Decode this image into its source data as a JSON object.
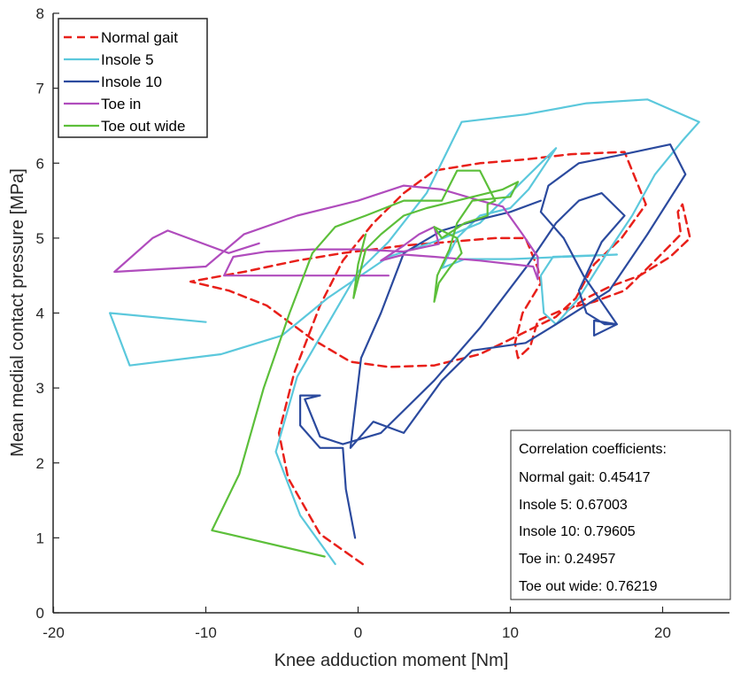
{
  "chart_data": {
    "type": "line",
    "title": "",
    "xlabel": "Knee adduction moment [Nm]",
    "ylabel": "Mean medial contact pressure [MPa]",
    "xlim": [
      -20,
      25
    ],
    "ylim": [
      0,
      8
    ],
    "xticks": [
      -20,
      -10,
      0,
      10,
      20
    ],
    "yticks": [
      0,
      1,
      2,
      3,
      4,
      5,
      6,
      7,
      8
    ],
    "grid": false,
    "legend_position": "top-left",
    "series": [
      {
        "name": "Normal gait",
        "color": "#e8201a",
        "dash": "dashed",
        "points": [
          [
            0.3,
            0.65
          ],
          [
            -2.5,
            1.05
          ],
          [
            -4.6,
            1.8
          ],
          [
            -5.2,
            2.4
          ],
          [
            -4.2,
            3.2
          ],
          [
            -2.5,
            4.1
          ],
          [
            -1.0,
            4.7
          ],
          [
            1.0,
            5.2
          ],
          [
            3.0,
            5.6
          ],
          [
            5.0,
            5.9
          ],
          [
            8.0,
            6.0
          ],
          [
            11.0,
            6.05
          ],
          [
            14.0,
            6.12
          ],
          [
            17.5,
            6.15
          ],
          [
            18.0,
            5.9
          ],
          [
            18.9,
            5.45
          ],
          [
            17.3,
            5.0
          ],
          [
            15.5,
            4.65
          ],
          [
            14.3,
            4.2
          ],
          [
            13.0,
            3.95
          ],
          [
            10.0,
            3.65
          ],
          [
            8.0,
            3.45
          ],
          [
            5.0,
            3.3
          ],
          [
            2.0,
            3.28
          ],
          [
            -0.5,
            3.35
          ],
          [
            -3.0,
            3.65
          ],
          [
            -6.0,
            4.1
          ],
          [
            -8.5,
            4.3
          ],
          [
            -11.0,
            4.42
          ],
          [
            -7.5,
            4.55
          ],
          [
            -4.0,
            4.7
          ],
          [
            -1.0,
            4.8
          ],
          [
            1.0,
            4.85
          ],
          [
            3.0,
            4.9
          ],
          [
            6.0,
            4.95
          ],
          [
            9.0,
            5.0
          ],
          [
            11.0,
            5.0
          ],
          [
            11.8,
            4.6
          ],
          [
            12.0,
            4.4
          ],
          [
            10.8,
            4.0
          ],
          [
            10.3,
            3.6
          ],
          [
            10.5,
            3.4
          ],
          [
            11.3,
            3.55
          ],
          [
            11.8,
            3.9
          ],
          [
            13.5,
            4.05
          ],
          [
            15.5,
            4.15
          ],
          [
            17.5,
            4.3
          ],
          [
            19.5,
            4.7
          ],
          [
            21.2,
            5.05
          ],
          [
            21.0,
            5.35
          ],
          [
            21.3,
            5.45
          ],
          [
            21.8,
            5.0
          ],
          [
            20.5,
            4.75
          ],
          [
            18.5,
            4.5
          ],
          [
            16.5,
            4.35
          ],
          [
            15.0,
            4.2
          ],
          [
            13.5,
            4.0
          ]
        ]
      },
      {
        "name": "Insole 5",
        "color": "#5bc8dc",
        "dash": "solid",
        "points": [
          [
            -1.5,
            0.65
          ],
          [
            -3.8,
            1.3
          ],
          [
            -5.4,
            2.15
          ],
          [
            -4.0,
            3.15
          ],
          [
            -2.0,
            3.85
          ],
          [
            0.0,
            4.55
          ],
          [
            2.0,
            4.95
          ],
          [
            4.5,
            5.6
          ],
          [
            6.8,
            6.55
          ],
          [
            11.0,
            6.65
          ],
          [
            15.0,
            6.8
          ],
          [
            19.0,
            6.85
          ],
          [
            22.4,
            6.55
          ],
          [
            21.3,
            6.3
          ],
          [
            19.5,
            5.85
          ],
          [
            18.0,
            5.3
          ],
          [
            16.2,
            4.75
          ],
          [
            14.5,
            4.2
          ],
          [
            13.0,
            3.85
          ],
          [
            12.2,
            4.0
          ],
          [
            12.0,
            4.5
          ],
          [
            12.8,
            4.75
          ],
          [
            17.0,
            4.78
          ],
          [
            10.0,
            4.72
          ],
          [
            7.0,
            4.72
          ],
          [
            5.5,
            4.6
          ],
          [
            6.5,
            5.0
          ],
          [
            8.0,
            5.3
          ],
          [
            10.0,
            5.4
          ],
          [
            11.2,
            5.65
          ],
          [
            13.0,
            6.2
          ],
          [
            8.0,
            5.2
          ],
          [
            5.0,
            4.95
          ],
          [
            2.0,
            4.75
          ],
          [
            -2.0,
            4.2
          ],
          [
            -5.0,
            3.7
          ],
          [
            -9.0,
            3.45
          ],
          [
            -15.0,
            3.3
          ],
          [
            -16.3,
            4.0
          ],
          [
            -10.0,
            3.88
          ]
        ]
      },
      {
        "name": "Insole 10",
        "color": "#2b4a9e",
        "dash": "solid",
        "points": [
          [
            -0.2,
            1.0
          ],
          [
            -0.8,
            1.65
          ],
          [
            -1.0,
            2.2
          ],
          [
            -2.5,
            2.2
          ],
          [
            -3.8,
            2.5
          ],
          [
            -3.8,
            2.9
          ],
          [
            -2.5,
            2.9
          ],
          [
            -3.5,
            2.85
          ],
          [
            -2.5,
            2.35
          ],
          [
            -1.0,
            2.25
          ],
          [
            1.5,
            2.4
          ],
          [
            5.0,
            3.1
          ],
          [
            8.0,
            3.8
          ],
          [
            11.0,
            4.6
          ],
          [
            13.0,
            5.2
          ],
          [
            14.5,
            5.5
          ],
          [
            16.0,
            5.6
          ],
          [
            17.5,
            5.3
          ],
          [
            16.0,
            4.95
          ],
          [
            14.5,
            4.3
          ],
          [
            15.0,
            4.0
          ],
          [
            16.2,
            3.85
          ],
          [
            17.0,
            3.85
          ],
          [
            15.5,
            3.7
          ],
          [
            15.5,
            3.9
          ],
          [
            17.0,
            3.85
          ],
          [
            14.8,
            4.5
          ],
          [
            13.5,
            5.0
          ],
          [
            12.0,
            5.35
          ],
          [
            12.5,
            5.7
          ],
          [
            14.5,
            6.0
          ],
          [
            17.0,
            6.1
          ],
          [
            20.5,
            6.25
          ],
          [
            21.5,
            5.85
          ],
          [
            19.0,
            5.05
          ],
          [
            16.5,
            4.3
          ],
          [
            13.0,
            3.85
          ],
          [
            11.0,
            3.6
          ],
          [
            7.5,
            3.5
          ],
          [
            5.5,
            3.1
          ],
          [
            3.0,
            2.4
          ],
          [
            1.0,
            2.55
          ],
          [
            -0.5,
            2.2
          ],
          [
            0.2,
            3.4
          ],
          [
            1.5,
            4.0
          ],
          [
            3.0,
            4.8
          ],
          [
            5.5,
            5.1
          ],
          [
            8.0,
            5.25
          ],
          [
            10.0,
            5.35
          ],
          [
            12.0,
            5.5
          ]
        ]
      },
      {
        "name": "Toe in",
        "color": "#b04cbd",
        "dash": "solid",
        "points": [
          [
            -6.5,
            4.93
          ],
          [
            -8.5,
            4.8
          ],
          [
            -12.5,
            5.1
          ],
          [
            -13.5,
            5.0
          ],
          [
            -16.0,
            4.55
          ],
          [
            -10.0,
            4.62
          ],
          [
            -7.5,
            5.05
          ],
          [
            -4.0,
            5.3
          ],
          [
            0.0,
            5.5
          ],
          [
            3.0,
            5.7
          ],
          [
            5.5,
            5.65
          ],
          [
            8.0,
            5.5
          ],
          [
            9.5,
            5.42
          ],
          [
            10.8,
            5.05
          ],
          [
            11.8,
            4.75
          ],
          [
            11.8,
            4.45
          ],
          [
            11.5,
            4.62
          ],
          [
            8.0,
            4.7
          ],
          [
            5.0,
            4.75
          ],
          [
            3.0,
            4.78
          ],
          [
            1.5,
            4.7
          ],
          [
            3.0,
            4.9
          ],
          [
            4.0,
            5.05
          ],
          [
            5.0,
            5.15
          ],
          [
            5.3,
            4.92
          ],
          [
            3.0,
            4.82
          ],
          [
            0.0,
            4.85
          ],
          [
            -3.0,
            4.85
          ],
          [
            -6.0,
            4.82
          ],
          [
            -8.2,
            4.75
          ],
          [
            -8.8,
            4.5
          ],
          [
            -4.0,
            4.5
          ],
          [
            2.0,
            4.5
          ]
        ]
      },
      {
        "name": "Toe out wide",
        "color": "#5cbf3a",
        "dash": "solid",
        "points": [
          [
            -2.2,
            0.75
          ],
          [
            -9.6,
            1.1
          ],
          [
            -7.8,
            1.85
          ],
          [
            -6.2,
            3.0
          ],
          [
            -4.5,
            4.0
          ],
          [
            -3.0,
            4.8
          ],
          [
            -1.5,
            5.15
          ],
          [
            0.5,
            5.3
          ],
          [
            3.0,
            5.5
          ],
          [
            5.5,
            5.5
          ],
          [
            6.5,
            5.9
          ],
          [
            8.0,
            5.9
          ],
          [
            8.5,
            5.7
          ],
          [
            9.0,
            5.5
          ],
          [
            8.5,
            5.45
          ],
          [
            8.5,
            5.3
          ],
          [
            7.0,
            5.2
          ],
          [
            5.5,
            5.0
          ],
          [
            5.0,
            5.15
          ],
          [
            6.5,
            5.0
          ],
          [
            6.8,
            4.8
          ],
          [
            6.0,
            4.6
          ],
          [
            5.3,
            4.4
          ],
          [
            5.0,
            4.15
          ],
          [
            5.2,
            4.5
          ],
          [
            6.0,
            4.85
          ],
          [
            6.5,
            5.2
          ],
          [
            7.5,
            5.5
          ],
          [
            10.0,
            5.55
          ],
          [
            10.5,
            5.75
          ],
          [
            9.5,
            5.65
          ],
          [
            6.5,
            5.5
          ],
          [
            4.5,
            5.4
          ],
          [
            3.0,
            5.3
          ],
          [
            1.5,
            5.05
          ],
          [
            0.5,
            4.85
          ],
          [
            0.2,
            4.6
          ],
          [
            -0.3,
            4.2
          ],
          [
            0.0,
            4.65
          ],
          [
            0.5,
            5.05
          ]
        ]
      }
    ],
    "annotation": {
      "title": "Correlation coefficients:",
      "lines": [
        "Normal gait: 0.45417",
        "Insole 5: 0.67003",
        "Insole 10: 0.79605",
        "Toe in: 0.24957",
        "Toe out wide: 0.76219"
      ]
    }
  }
}
